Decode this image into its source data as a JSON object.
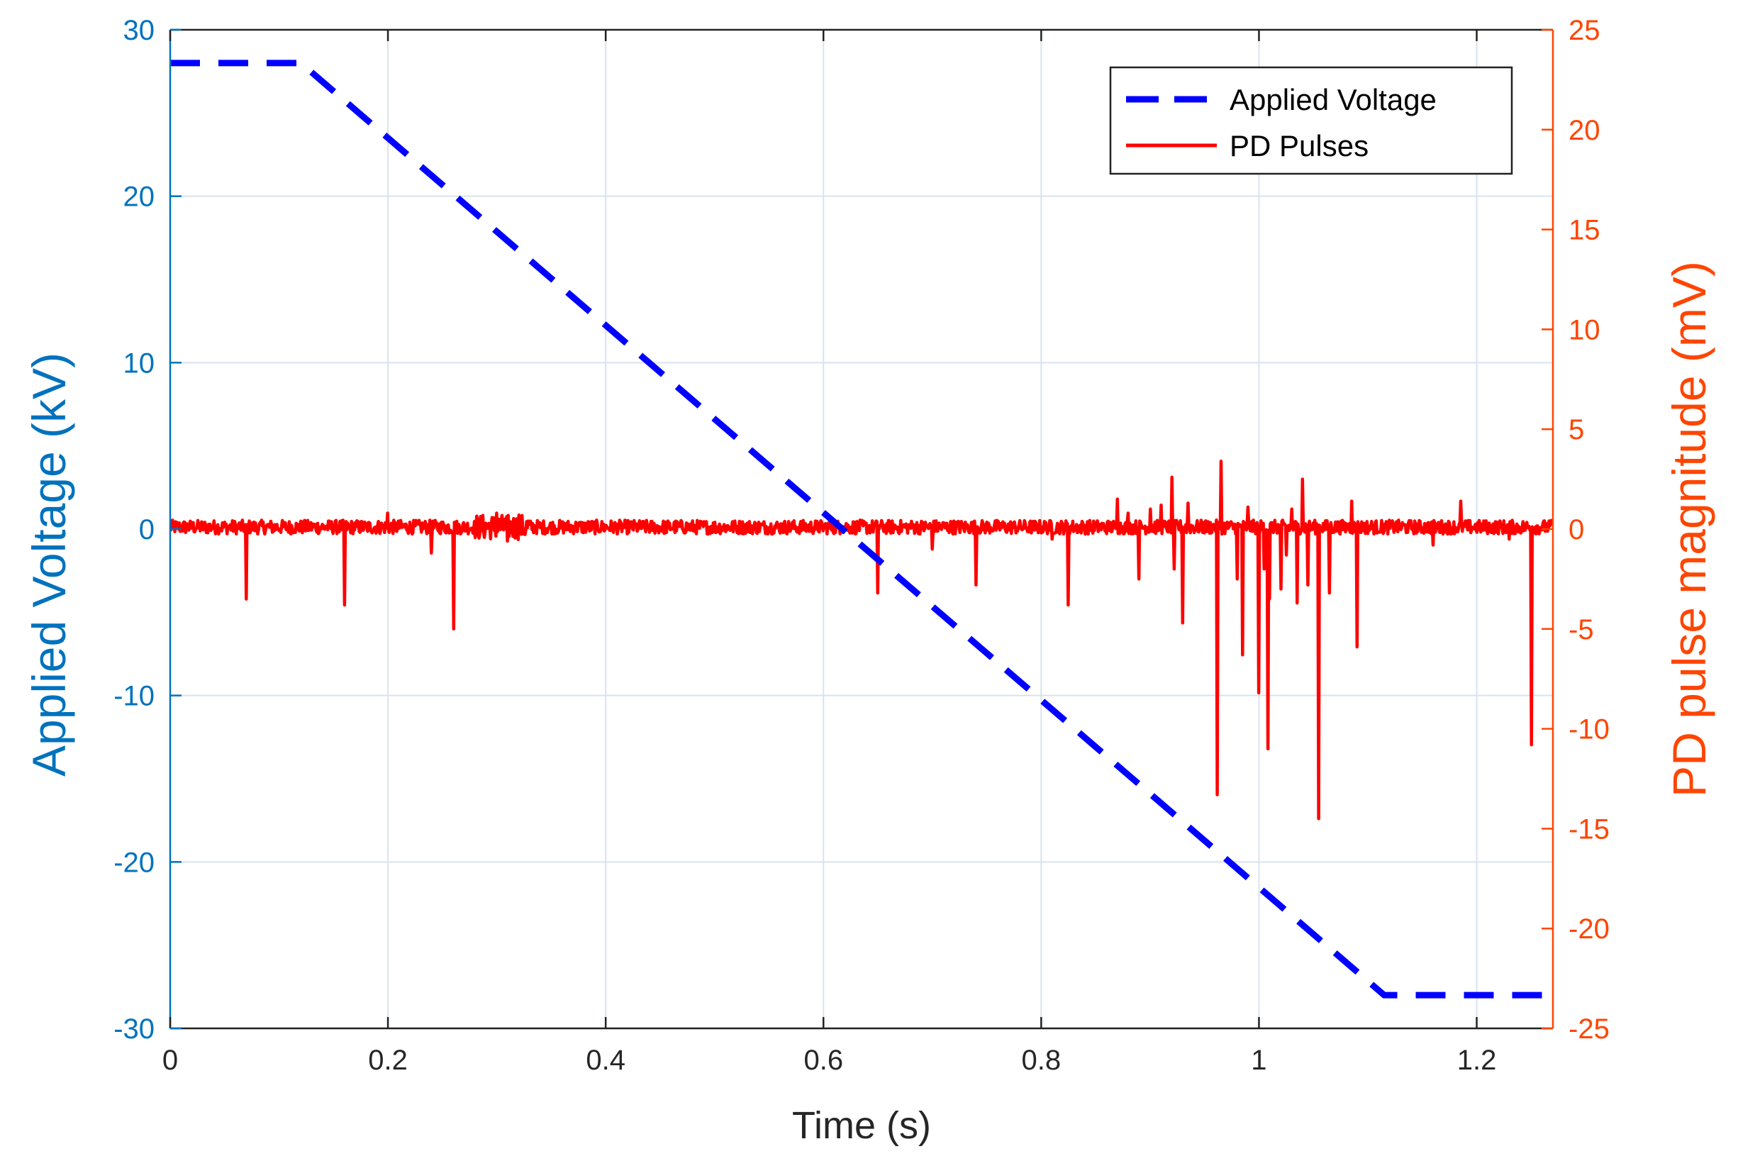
{
  "chart_data": {
    "type": "line",
    "title": "",
    "xlabel": "Time (s)",
    "ylabel_left": "Applied Voltage (kV)",
    "ylabel_right": "PD pulse magnitude (mV)",
    "xlim": [
      0,
      1.27
    ],
    "ylim_left": [
      -30,
      30
    ],
    "ylim_right": [
      -25,
      25
    ],
    "grid": true,
    "legend_position": "top-right",
    "x_ticks": [
      "0",
      "0.2",
      "0.4",
      "0.6",
      "0.8",
      "1",
      "1.2"
    ],
    "x_tick_values": [
      0,
      0.2,
      0.4,
      0.6,
      0.8,
      1.0,
      1.2
    ],
    "y_left_ticks": [
      "30",
      "20",
      "10",
      "0",
      "-10",
      "-20",
      "-30"
    ],
    "y_left_tick_values": [
      30,
      20,
      10,
      0,
      -10,
      -20,
      -30
    ],
    "y_right_ticks": [
      "25",
      "20",
      "15",
      "10",
      "5",
      "0",
      "-5",
      "-10",
      "-15",
      "-20",
      "-25"
    ],
    "y_right_tick_values": [
      25,
      20,
      15,
      10,
      5,
      0,
      -5,
      -10,
      -15,
      -20,
      -25
    ],
    "colors": {
      "left_axis": "#0072BD",
      "right_axis": "#FF4500",
      "voltage": "#0000FF",
      "pd": "#FF0000",
      "grid": "#D9E3EC",
      "frame": "#222222"
    },
    "series": [
      {
        "name": "Applied Voltage",
        "axis": "left",
        "style": "dashed",
        "x": [
          0,
          0.12,
          1.115,
          1.27
        ],
        "y": [
          28,
          28,
          -28,
          -28
        ]
      },
      {
        "name": "PD Pulses",
        "axis": "right",
        "style": "solid",
        "baseline": 0.1,
        "noise_amplitude": 0.35,
        "pulses": [
          {
            "t": 0.07,
            "v": -3.5
          },
          {
            "t": 0.16,
            "v": -3.8
          },
          {
            "t": 0.2,
            "v": 0.8
          },
          {
            "t": 0.24,
            "v": -1.2
          },
          {
            "t": 0.26,
            "v": -5.0
          },
          {
            "t": 0.3,
            "v": 0.8
          },
          {
            "t": 0.31,
            "v": -0.6
          },
          {
            "t": 0.32,
            "v": 0.7
          },
          {
            "t": 0.65,
            "v": -3.2
          },
          {
            "t": 0.7,
            "v": -1.0
          },
          {
            "t": 0.74,
            "v": -2.8
          },
          {
            "t": 0.81,
            "v": -0.5
          },
          {
            "t": 0.825,
            "v": -3.8
          },
          {
            "t": 0.87,
            "v": 1.5
          },
          {
            "t": 0.88,
            "v": 0.8
          },
          {
            "t": 0.89,
            "v": -2.5
          },
          {
            "t": 0.9,
            "v": 1.0
          },
          {
            "t": 0.91,
            "v": 1.2
          },
          {
            "t": 0.92,
            "v": 2.6
          },
          {
            "t": 0.922,
            "v": -2.0
          },
          {
            "t": 0.93,
            "v": -4.7
          },
          {
            "t": 0.935,
            "v": 1.3
          },
          {
            "t": 0.962,
            "v": -13.3
          },
          {
            "t": 0.965,
            "v": 3.4
          },
          {
            "t": 0.98,
            "v": -2.5
          },
          {
            "t": 0.985,
            "v": -6.3
          },
          {
            "t": 0.99,
            "v": 1.1
          },
          {
            "t": 1.0,
            "v": -8.2
          },
          {
            "t": 1.005,
            "v": -2.0
          },
          {
            "t": 1.008,
            "v": -11.0
          },
          {
            "t": 1.01,
            "v": -3.5
          },
          {
            "t": 1.02,
            "v": -3.0
          },
          {
            "t": 1.025,
            "v": -1.3
          },
          {
            "t": 1.03,
            "v": 1.0
          },
          {
            "t": 1.035,
            "v": -3.7
          },
          {
            "t": 1.04,
            "v": 2.5
          },
          {
            "t": 1.045,
            "v": -2.8
          },
          {
            "t": 1.055,
            "v": -14.5
          },
          {
            "t": 1.065,
            "v": -3.2
          },
          {
            "t": 1.085,
            "v": 1.4
          },
          {
            "t": 1.09,
            "v": -5.9
          },
          {
            "t": 1.16,
            "v": -0.8
          },
          {
            "t": 1.185,
            "v": 1.4
          },
          {
            "t": 1.23,
            "v": -0.5
          },
          {
            "t": 1.25,
            "v": -10.8
          }
        ]
      }
    ]
  }
}
